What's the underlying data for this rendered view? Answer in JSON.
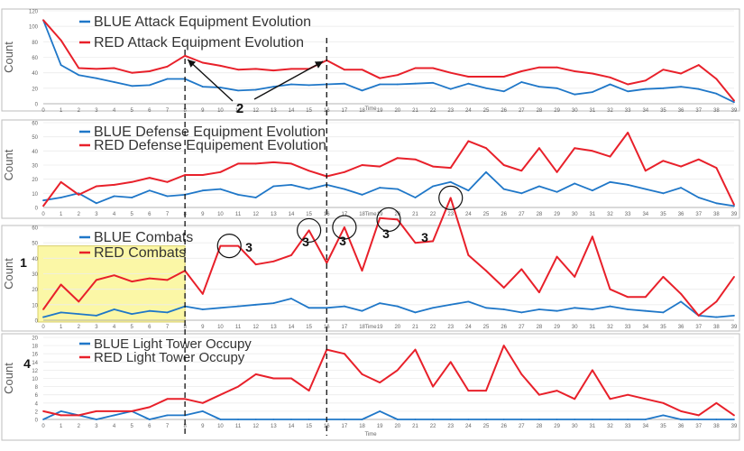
{
  "figure": {
    "markers": {
      "arrow_label": "2",
      "yellow_box_label": "1",
      "lighttower_label": "4",
      "combat_peak_label": "3"
    },
    "colors": {
      "blue": "#1f77c8",
      "red": "#e8202a",
      "highlight": "#fbf7a6",
      "frame": "#bdbdbd"
    }
  },
  "chart_data": [
    {
      "type": "line",
      "ylabel": "Count",
      "xlabel": "Time",
      "ylim": [
        0,
        120
      ],
      "yticks": [
        "0",
        "20",
        "40",
        "60",
        "80",
        "100",
        "120"
      ],
      "x": [
        "0",
        "1",
        "2",
        "3",
        "4",
        "5",
        "6",
        "7",
        "8",
        "9",
        "10",
        "11",
        "12",
        "13",
        "14",
        "15",
        "16",
        "17",
        "18",
        "19",
        "20",
        "21",
        "22",
        "23",
        "24",
        "25",
        "26",
        "27",
        "28",
        "29",
        "30",
        "31",
        "32",
        "33",
        "34",
        "35",
        "36",
        "37",
        "38",
        "39"
      ],
      "series": [
        {
          "name": "BLUE Attack Equipment Evolution",
          "color": "#1f77c8",
          "values": [
            108,
            50,
            37,
            33,
            28,
            23,
            24,
            32,
            32,
            22,
            21,
            17,
            18,
            22,
            25,
            24,
            25,
            26,
            17,
            25,
            25,
            26,
            27,
            19,
            26,
            20,
            16,
            28,
            22,
            20,
            12,
            15,
            25,
            16,
            19,
            20,
            22,
            19,
            13,
            2
          ]
        },
        {
          "name": "RED Attack Equipment Evolution",
          "color": "#e8202a",
          "values": [
            108,
            82,
            46,
            45,
            46,
            40,
            42,
            48,
            62,
            53,
            49,
            44,
            45,
            43,
            45,
            45,
            56,
            44,
            44,
            33,
            37,
            46,
            46,
            40,
            35,
            35,
            35,
            42,
            47,
            47,
            42,
            39,
            34,
            25,
            30,
            44,
            39,
            50,
            32,
            4
          ]
        }
      ]
    },
    {
      "type": "line",
      "ylabel": "Count",
      "xlabel": "Time",
      "ylim": [
        0,
        60
      ],
      "yticks": [
        "0",
        "10",
        "20",
        "30",
        "40",
        "50",
        "60"
      ],
      "x": [
        "0",
        "1",
        "2",
        "3",
        "4",
        "5",
        "6",
        "7",
        "8",
        "9",
        "10",
        "11",
        "12",
        "13",
        "14",
        "15",
        "16",
        "17",
        "18",
        "19",
        "20",
        "21",
        "22",
        "23",
        "24",
        "25",
        "26",
        "27",
        "28",
        "29",
        "30",
        "31",
        "32",
        "33",
        "34",
        "35",
        "36",
        "37",
        "38",
        "39"
      ],
      "series": [
        {
          "name": "BLUE Defense Equipment Evolution",
          "color": "#1f77c8",
          "values": [
            5,
            7,
            10,
            3,
            8,
            7,
            12,
            8,
            9,
            12,
            13,
            9,
            7,
            15,
            16,
            13,
            16,
            13,
            9,
            14,
            13,
            7,
            15,
            18,
            12,
            25,
            13,
            10,
            15,
            11,
            17,
            12,
            18,
            16,
            13,
            10,
            14,
            7,
            3,
            1
          ]
        },
        {
          "name": "RED Defense Equipement Evolution",
          "color": "#e8202a",
          "values": [
            1,
            18,
            9,
            15,
            16,
            18,
            21,
            18,
            23,
            23,
            25,
            31,
            31,
            32,
            31,
            26,
            22,
            25,
            30,
            29,
            35,
            34,
            29,
            28,
            47,
            42,
            30,
            26,
            42,
            25,
            42,
            40,
            36,
            53,
            26,
            33,
            29,
            34,
            28,
            2
          ]
        }
      ]
    },
    {
      "type": "line",
      "ylabel": "Count",
      "xlabel": "Time",
      "ylim": [
        0,
        60
      ],
      "yticks": [
        "0",
        "10",
        "20",
        "30",
        "40",
        "50",
        "60"
      ],
      "x": [
        "0",
        "1",
        "2",
        "3",
        "4",
        "5",
        "6",
        "7",
        "8",
        "9",
        "10",
        "11",
        "12",
        "13",
        "14",
        "15",
        "16",
        "17",
        "18",
        "19",
        "20",
        "21",
        "22",
        "23",
        "24",
        "25",
        "26",
        "27",
        "28",
        "29",
        "30",
        "31",
        "32",
        "33",
        "34",
        "35",
        "36",
        "37",
        "38",
        "39"
      ],
      "series": [
        {
          "name": "BLUE Combats",
          "color": "#1f77c8",
          "values": [
            2,
            5,
            4,
            3,
            7,
            4,
            6,
            5,
            9,
            7,
            8,
            9,
            10,
            11,
            14,
            8,
            8,
            9,
            6,
            11,
            9,
            5,
            8,
            10,
            12,
            8,
            7,
            5,
            7,
            6,
            8,
            7,
            9,
            7,
            6,
            5,
            12,
            3,
            2,
            3
          ]
        },
        {
          "name": "RED Combats",
          "color": "#e8202a",
          "values": [
            7,
            23,
            12,
            26,
            29,
            25,
            27,
            26,
            32,
            17,
            48,
            48,
            36,
            38,
            42,
            58,
            37,
            60,
            32,
            66,
            65,
            50,
            51,
            79,
            42,
            32,
            21,
            33,
            18,
            41,
            28,
            54,
            20,
            15,
            15,
            28,
            17,
            3,
            12,
            28
          ]
        }
      ]
    },
    {
      "type": "line",
      "ylabel": "Count",
      "xlabel": "Time",
      "ylim": [
        0,
        20
      ],
      "yticks": [
        "0",
        "2",
        "4",
        "6",
        "8",
        "10",
        "12",
        "14",
        "16",
        "18",
        "20"
      ],
      "x": [
        "0",
        "1",
        "2",
        "3",
        "4",
        "5",
        "6",
        "7",
        "8",
        "9",
        "10",
        "11",
        "12",
        "13",
        "14",
        "15",
        "16",
        "17",
        "18",
        "19",
        "20",
        "21",
        "22",
        "23",
        "24",
        "25",
        "26",
        "27",
        "28",
        "29",
        "30",
        "31",
        "32",
        "33",
        "34",
        "35",
        "36",
        "37",
        "38",
        "39"
      ],
      "series": [
        {
          "name": "BLUE Light Tower Occupy",
          "color": "#1f77c8",
          "values": [
            0,
            2,
            1,
            0,
            1,
            2,
            0,
            1,
            1,
            2,
            0,
            0,
            0,
            0,
            0,
            0,
            0,
            0,
            0,
            2,
            0,
            0,
            0,
            0,
            0,
            0,
            0,
            0,
            0,
            0,
            0,
            0,
            0,
            0,
            0,
            1,
            0,
            0,
            0,
            0
          ]
        },
        {
          "name": "RED Light Tower Occupy",
          "color": "#e8202a",
          "values": [
            2,
            1,
            1,
            2,
            2,
            2,
            3,
            5,
            5,
            4,
            6,
            8,
            11,
            10,
            10,
            7,
            17,
            16,
            11,
            9,
            12,
            17,
            8,
            14,
            7,
            7,
            18,
            11,
            6,
            7,
            5,
            12,
            5,
            6,
            5,
            4,
            2,
            1,
            4,
            1
          ]
        }
      ]
    }
  ]
}
